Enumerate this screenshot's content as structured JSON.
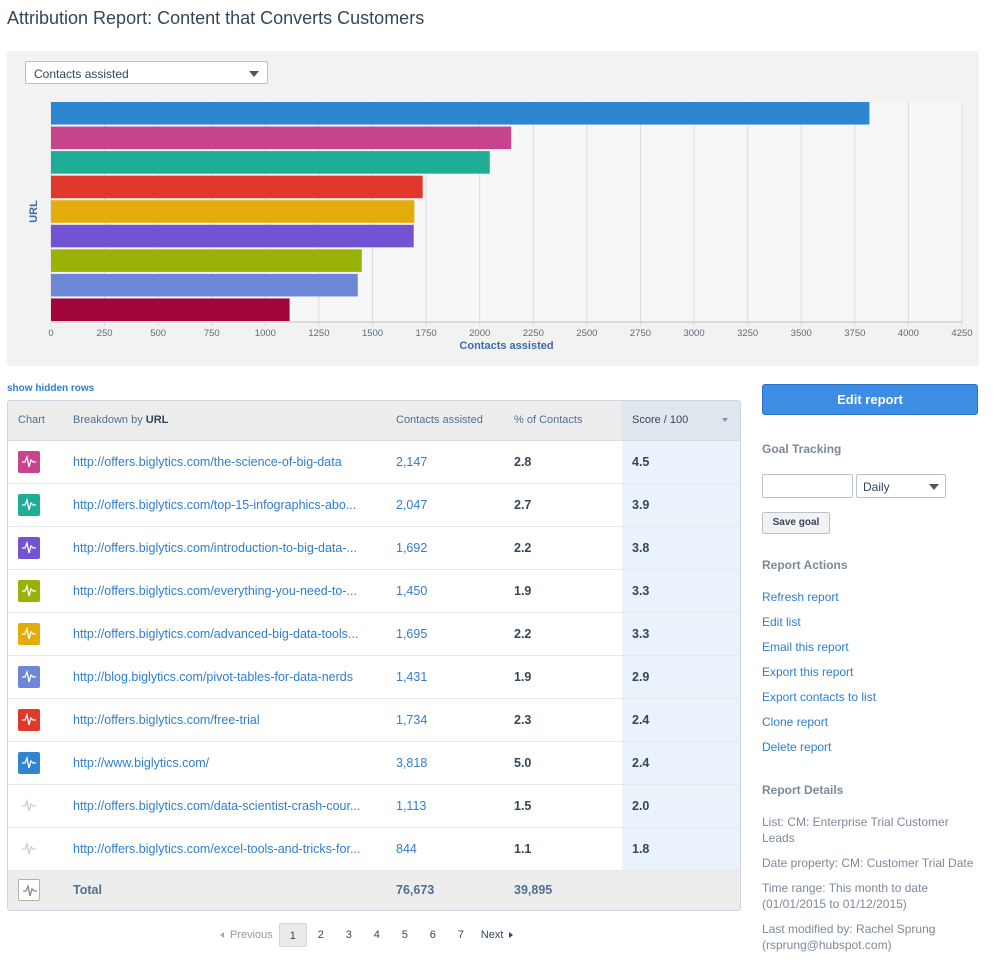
{
  "page": {
    "title": "Attribution Report: Content that Converts Customers"
  },
  "metric_select": {
    "value": "Contacts assisted"
  },
  "chart_data": {
    "type": "bar",
    "orientation": "horizontal",
    "ylabel": "URL",
    "xlabel": "Contacts assisted",
    "xlim": [
      0,
      4250
    ],
    "x_ticks": [
      "0",
      "250",
      "500",
      "750",
      "1000",
      "1250",
      "1500",
      "1750",
      "2000",
      "2250",
      "2500",
      "2750",
      "3000",
      "3250",
      "3500",
      "3750",
      "4000",
      "4250"
    ],
    "grid": true,
    "categories": [
      "http://www.biglytics.com/",
      "http://offers.biglytics.com/the-science-of-big-data",
      "http://offers.biglytics.com/top-15-infographics-abo...",
      "http://offers.biglytics.com/free-trial",
      "http://offers.biglytics.com/advanced-big-data-tools...",
      "http://offers.biglytics.com/introduction-to-big-data-...",
      "http://offers.biglytics.com/everything-you-need-to-...",
      "http://blog.biglytics.com/pivot-tables-for-data-nerds",
      "http://offers.biglytics.com/data-scientist-crash-cour..."
    ],
    "values": [
      3818,
      2147,
      2047,
      1734,
      1695,
      1692,
      1450,
      1431,
      1113
    ],
    "colors": [
      "#2f86d0",
      "#c8458e",
      "#20ad95",
      "#e0392b",
      "#e3ac0b",
      "#7153d4",
      "#9ab10a",
      "#6b87d6",
      "#a0063b"
    ]
  },
  "links": {
    "show_hidden": "show hidden rows"
  },
  "table": {
    "headers": {
      "chart": "Chart",
      "breakdown_prefix": "Breakdown by",
      "breakdown_field": "URL",
      "assisted": "Contacts assisted",
      "pct": "% of Contacts",
      "score": "Score / 100"
    },
    "rows": [
      {
        "url": "http://offers.biglytics.com/the-science-of-big-data",
        "assisted": "2,147",
        "pct": "2.8",
        "score": "4.5",
        "color": "#c8458e",
        "active": true
      },
      {
        "url": "http://offers.biglytics.com/top-15-infographics-abo...",
        "assisted": "2,047",
        "pct": "2.7",
        "score": "3.9",
        "color": "#20ad95",
        "active": true
      },
      {
        "url": "http://offers.biglytics.com/introduction-to-big-data-...",
        "assisted": "1,692",
        "pct": "2.2",
        "score": "3.8",
        "color": "#7153d4",
        "active": true
      },
      {
        "url": "http://offers.biglytics.com/everything-you-need-to-...",
        "assisted": "1,450",
        "pct": "1.9",
        "score": "3.3",
        "color": "#9ab10a",
        "active": true
      },
      {
        "url": "http://offers.biglytics.com/advanced-big-data-tools...",
        "assisted": "1,695",
        "pct": "2.2",
        "score": "3.3",
        "color": "#e3ac0b",
        "active": true
      },
      {
        "url": "http://blog.biglytics.com/pivot-tables-for-data-nerds",
        "assisted": "1,431",
        "pct": "1.9",
        "score": "2.9",
        "color": "#6b87d6",
        "active": true
      },
      {
        "url": "http://offers.biglytics.com/free-trial",
        "assisted": "1,734",
        "pct": "2.3",
        "score": "2.4",
        "color": "#e0392b",
        "active": true
      },
      {
        "url": "http://www.biglytics.com/",
        "assisted": "3,818",
        "pct": "5.0",
        "score": "2.4",
        "color": "#2f86d0",
        "active": true
      },
      {
        "url": "http://offers.biglytics.com/data-scientist-crash-cour...",
        "assisted": "1,113",
        "pct": "1.5",
        "score": "2.0",
        "color": "#ffffff",
        "active": false
      },
      {
        "url": "http://offers.biglytics.com/excel-tools-and-tricks-for...",
        "assisted": "844",
        "pct": "1.1",
        "score": "1.8",
        "color": "#ffffff",
        "active": false
      }
    ],
    "total": {
      "label": "Total",
      "assisted": "76,673",
      "pct": "39,895"
    }
  },
  "pagination": {
    "prev": "Previous",
    "pages": [
      "1",
      "2",
      "3",
      "4",
      "5",
      "6",
      "7"
    ],
    "current": "1",
    "next": "Next"
  },
  "sidebar": {
    "edit_report": "Edit report",
    "goal_tracking": "Goal Tracking",
    "goal_input": "",
    "goal_period": "Daily",
    "save_goal": "Save goal",
    "report_actions": "Report Actions",
    "actions": [
      "Refresh report",
      "Edit list",
      "Email this report",
      "Export this report",
      "Export contacts to list",
      "Clone report",
      "Delete report"
    ],
    "report_details": "Report Details",
    "details": {
      "list": "List: CM: Enterprise Trial Customer Leads",
      "date_property": "Date property: CM: Customer Trial Date",
      "time_range": "Time range: This month to date (01/01/2015 to 01/12/2015)",
      "modified_by": "Last modified by: Rachel Sprung (rsprung@hubspot.com)"
    }
  }
}
